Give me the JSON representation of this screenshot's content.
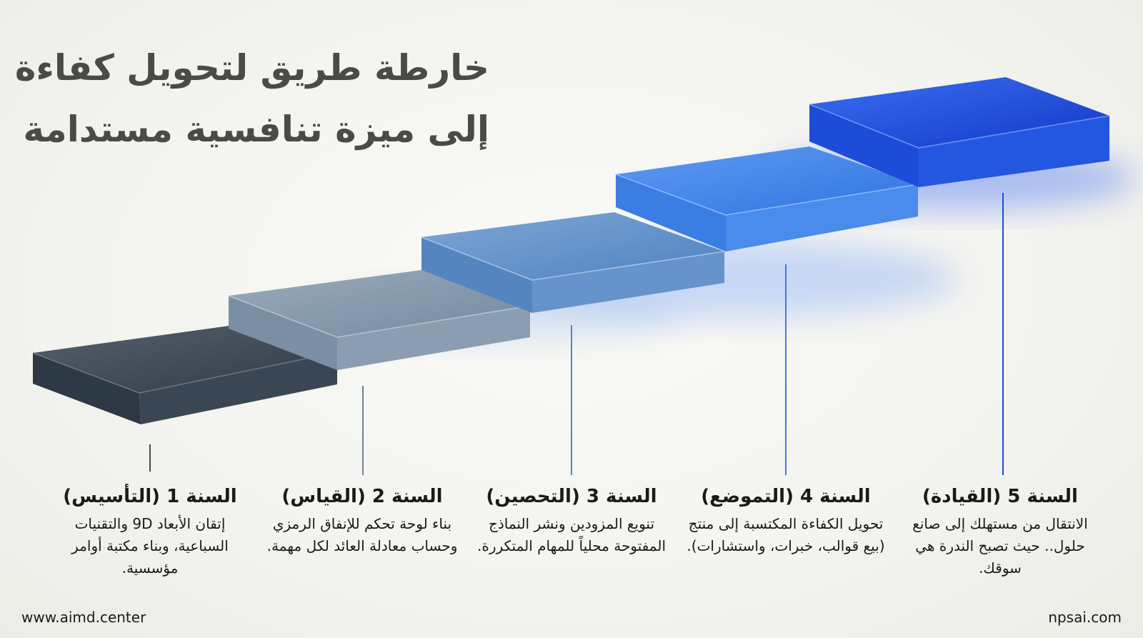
{
  "title": {
    "line1": "خارطة طريق لتحويل كفاءة",
    "line2": "إلى ميزة تنافسية مستدامة"
  },
  "steps": [
    {
      "year": "السنة 1 (التأسيس)",
      "description": "إتقان الأبعاد 9D والتقنيات السباعية، وبناء مكتبة أوامر مؤسسية.",
      "color": "#3b4856"
    },
    {
      "year": "السنة 2 (القياس)",
      "description": "بناء لوحة تحكم للإنفاق الرمزي وحساب معادلة العائد لكل مهمة.",
      "color": "#7f95aa"
    },
    {
      "year": "السنة 3 (التحصين)",
      "description": "تنويع المزودين ونشر النماذج المفتوحة محلياً للمهام المتكررة.",
      "color": "#5c8bc6"
    },
    {
      "year": "السنة 4 (التموضع)",
      "description": "تحويل الكفاءة المكتسبة إلى منتج (بيع قوالب، خبرات، واستشارات).",
      "color": "#3c7ee6"
    },
    {
      "year": "السنة 5 (القيادة)",
      "description": "الانتقال من مستهلك إلى صانع حلول.. حيث تصبح الندرة هي سوقك.",
      "color": "#1c4fdc"
    }
  ],
  "footer": {
    "left": "www.aimd.center",
    "right": "npsai.com"
  }
}
